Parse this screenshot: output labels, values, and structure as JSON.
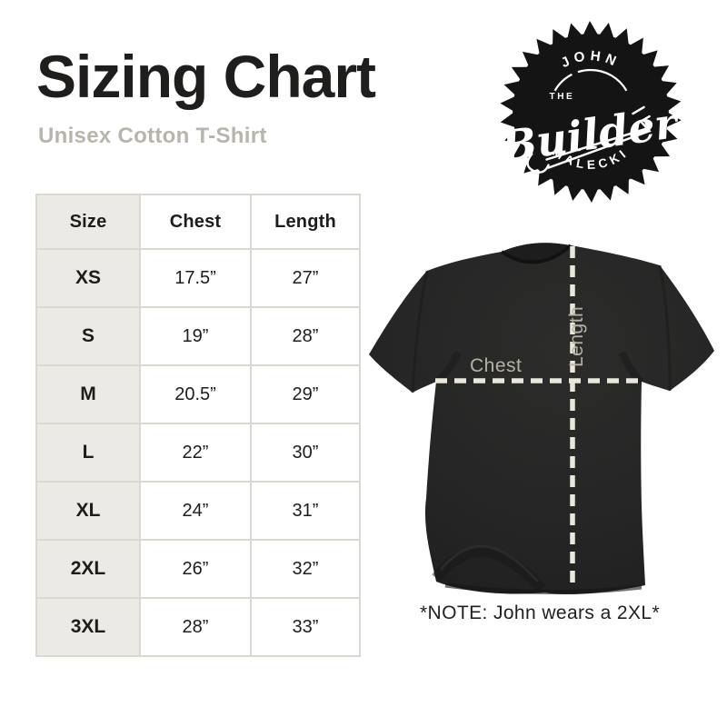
{
  "header": {
    "title": "Sizing Chart",
    "subtitle": "Unisex Cotton T-Shirt"
  },
  "logo": {
    "top_text": "JOHN",
    "the_text": "THE",
    "script_text": "Builder",
    "bottom_text": "MALECKI"
  },
  "table": {
    "columns": [
      "Size",
      "Chest",
      "Length"
    ],
    "rows": [
      {
        "size": "XS",
        "chest": "17.5”",
        "length": "27”"
      },
      {
        "size": "S",
        "chest": "19”",
        "length": "28”"
      },
      {
        "size": "M",
        "chest": "20.5”",
        "length": "29”"
      },
      {
        "size": "L",
        "chest": "22”",
        "length": "30”"
      },
      {
        "size": "XL",
        "chest": "24”",
        "length": "31”"
      },
      {
        "size": "2XL",
        "chest": "26”",
        "length": "32”"
      },
      {
        "size": "3XL",
        "chest": "28”",
        "length": "33”"
      }
    ]
  },
  "diagram": {
    "chest_label": "Chest",
    "length_label": "Length"
  },
  "note": {
    "text": "*NOTE: John wears a 2XL*"
  },
  "colors": {
    "title_text": "#201e1c",
    "subtitle_text": "#b8b5ac",
    "table_border": "#dbd8d2",
    "size_column_bg": "#eceae4",
    "cell_text": "#1e1d1b",
    "shirt_black": "#262626",
    "dash_line": "#eae7db",
    "measure_label": "#b6b2a3",
    "logo_black": "#141414"
  },
  "chart_data": {
    "type": "table",
    "title": "Sizing Chart — Unisex Cotton T-Shirt",
    "columns": [
      "Size",
      "Chest",
      "Length"
    ],
    "rows": [
      [
        "XS",
        "17.5”",
        "27”"
      ],
      [
        "S",
        "19”",
        "28”"
      ],
      [
        "M",
        "20.5”",
        "29”"
      ],
      [
        "L",
        "22”",
        "30”"
      ],
      [
        "XL",
        "24”",
        "31”"
      ],
      [
        "2XL",
        "26”",
        "32”"
      ],
      [
        "3XL",
        "28”",
        "33”"
      ]
    ]
  }
}
